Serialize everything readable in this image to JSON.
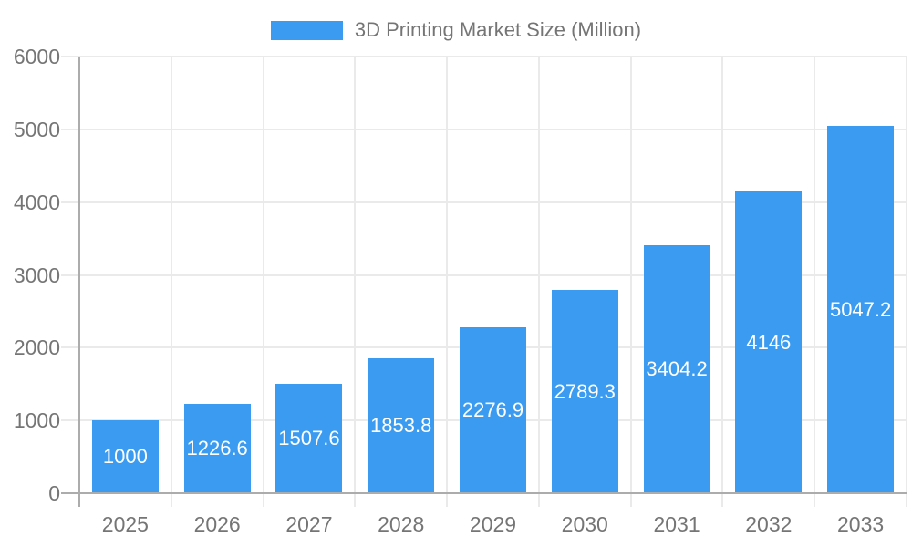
{
  "chart_data": {
    "type": "bar",
    "title": "3D Printing Market Size (Million)",
    "categories": [
      "2025",
      "2026",
      "2027",
      "2028",
      "2029",
      "2030",
      "2031",
      "2032",
      "2033"
    ],
    "values": [
      1000,
      1226.6,
      1507.6,
      1853.8,
      2276.9,
      2789.3,
      3404.2,
      4146,
      5047.2
    ],
    "bar_labels": [
      "1000",
      "1226.6",
      "1507.6",
      "1853.8",
      "2276.9",
      "2789.3",
      "3404.2",
      "4146",
      "5047.2"
    ],
    "xlabel": "",
    "ylabel": "",
    "ylim": [
      0,
      6000
    ],
    "ytick_step": 1000,
    "ytick_labels": [
      "0",
      "1000",
      "2000",
      "3000",
      "4000",
      "5000",
      "6000"
    ],
    "grid": true,
    "legend_position": "top",
    "colors": {
      "bar": "#3A9BF0",
      "value_label": "#FFFFFF",
      "grid_line": "#EAEAEA",
      "axis_line": "#ACACAC",
      "tick_label": "#757575",
      "legend_text": "#757575",
      "background": "#FFFFFF"
    }
  }
}
